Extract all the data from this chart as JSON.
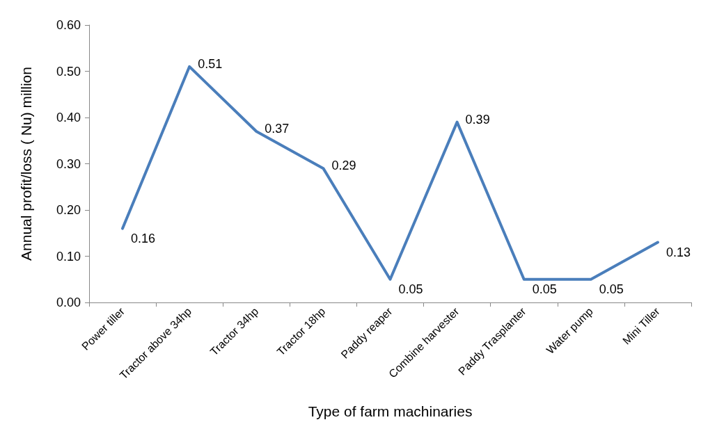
{
  "chart_data": {
    "type": "line",
    "xlabel": "Type of farm machinaries",
    "ylabel": "Annual profit/loss ( Nu) million",
    "categories": [
      "Power tiller",
      "Tractor above 34hp",
      "Tractor 34hp",
      "Tractor 18hp",
      "Paddy reaper",
      "Combine harvester",
      "Paddy Trasplanter",
      "Water pump",
      "Mini Tiller"
    ],
    "series": [
      {
        "color": "#4a7ebb",
        "values": [
          0.16,
          0.51,
          0.37,
          0.29,
          0.05,
          0.39,
          0.05,
          0.05,
          0.13
        ]
      }
    ],
    "ylim": [
      0,
      0.6
    ],
    "yticks": [
      {
        "value": 0,
        "label": "0.00"
      },
      {
        "value": 0.1,
        "label": "0.10"
      },
      {
        "value": 0.2,
        "label": "0.20"
      },
      {
        "value": 0.3,
        "label": "0.30"
      },
      {
        "value": 0.4,
        "label": "0.40"
      },
      {
        "value": 0.5,
        "label": "0.50"
      },
      {
        "value": 0.6,
        "label": "0.60"
      }
    ],
    "data_labels": true,
    "grid": false,
    "marker": "none",
    "line_style": "solid"
  }
}
